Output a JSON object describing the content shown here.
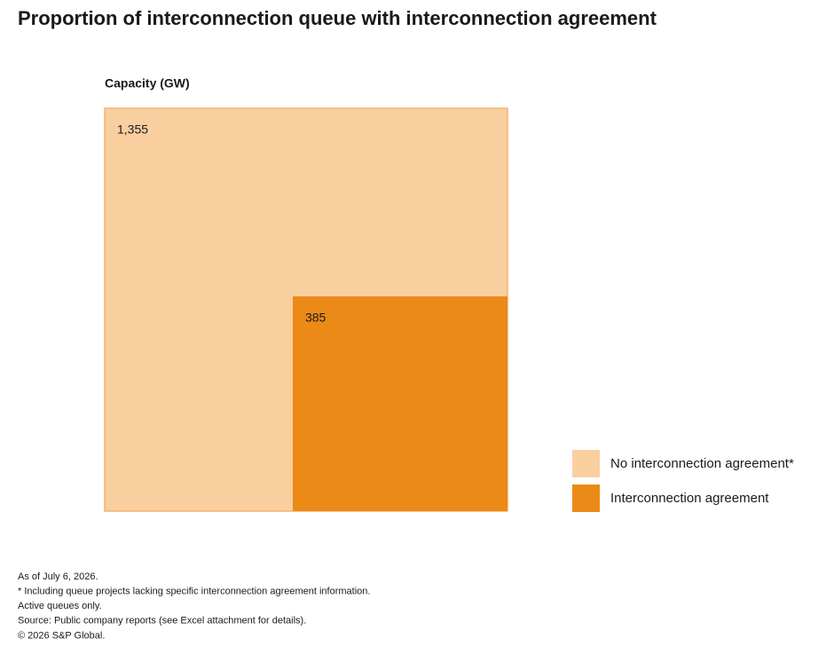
{
  "chart_data": {
    "type": "nested-square",
    "title": "Proportion of interconnection queue with interconnection agreement",
    "subtitle": "Capacity (GW)",
    "series": [
      {
        "name": "No interconnection agreement*",
        "color": "#f9cfa0",
        "values": [
          1355
        ],
        "value_labels": [
          "1,355"
        ]
      },
      {
        "name": "Interconnection agreement",
        "color": "#eb8a17",
        "values": [
          385
        ]
      }
    ],
    "notes": [
      "As of July 6, 2026.",
      "* Including queue projects lacking specific interconnection agreement information.",
      "Active queues only.",
      "Source: Public company reports (see Excel attachment for details).",
      "© 2026 S&P Global."
    ]
  }
}
